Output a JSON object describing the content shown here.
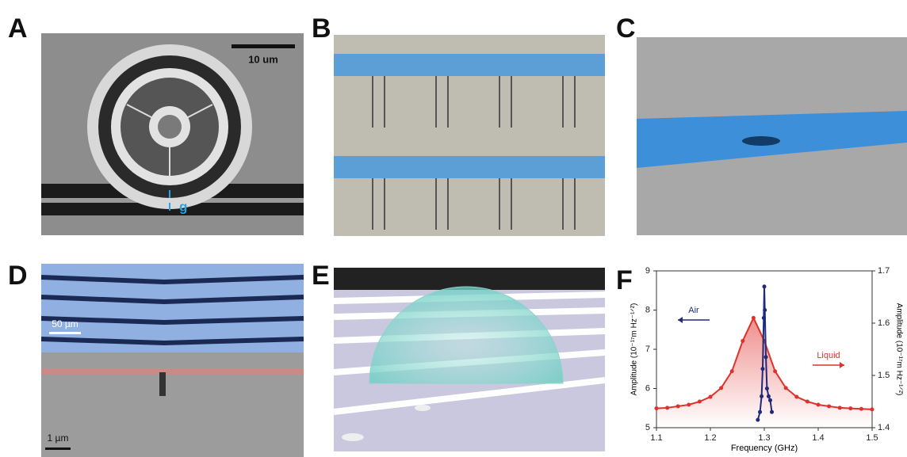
{
  "panels": [
    {
      "label": "A",
      "annotations": [
        "10 um",
        "g"
      ]
    },
    {
      "label": "B"
    },
    {
      "label": "C"
    },
    {
      "label": "D",
      "annotations": [
        "50 µm",
        "1 µm"
      ]
    },
    {
      "label": "E"
    },
    {
      "label": "F"
    }
  ],
  "chart_data": {
    "type": "scatter",
    "xlabel": "Frequency (GHz)",
    "ylabel": "Amplitude (10⁻¹⁷m Hz⁻¹ᐟ²)",
    "y2label": "Amplitude (10⁻¹⁷m Hz⁻¹ᐟ²)",
    "xlim": [
      1.1,
      1.5
    ],
    "xticks": [
      1.1,
      1.2,
      1.3,
      1.4,
      1.5
    ],
    "ylim": [
      5,
      9
    ],
    "yticks": [
      5,
      6,
      7,
      8,
      9
    ],
    "y2lim": [
      1.4,
      1.7
    ],
    "y2ticks": [
      1.4,
      1.5,
      1.6,
      1.7
    ],
    "series": [
      {
        "name": "Liquid",
        "color": "#e0312b",
        "axis": "y2",
        "x": [
          1.1,
          1.12,
          1.14,
          1.16,
          1.18,
          1.2,
          1.22,
          1.24,
          1.26,
          1.28,
          1.3,
          1.32,
          1.34,
          1.36,
          1.38,
          1.4,
          1.42,
          1.44,
          1.46,
          1.48,
          1.5
        ],
        "values": [
          1.437,
          1.438,
          1.441,
          1.444,
          1.45,
          1.459,
          1.476,
          1.508,
          1.566,
          1.61,
          1.566,
          1.508,
          1.476,
          1.459,
          1.45,
          1.444,
          1.441,
          1.438,
          1.437,
          1.436,
          1.435
        ]
      },
      {
        "name": "Air",
        "color": "#1f2a7a",
        "axis": "y",
        "x": [
          1.288,
          1.292,
          1.295,
          1.297,
          1.299,
          1.3,
          1.301,
          1.303,
          1.305,
          1.308,
          1.311,
          1.314
        ],
        "values": [
          5.2,
          5.4,
          5.8,
          6.5,
          7.8,
          8.6,
          8.0,
          6.8,
          6.0,
          5.8,
          5.7,
          5.4
        ]
      }
    ]
  }
}
